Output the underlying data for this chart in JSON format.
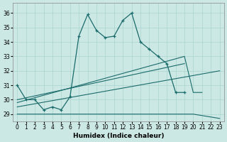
{
  "xlabel": "Humidex (Indice chaleur)",
  "bg_color": "#cce8e4",
  "grid_color": "#aad4d0",
  "line_color": "#1a6b6b",
  "xlim": [
    -0.5,
    23.5
  ],
  "ylim": [
    28.5,
    36.7
  ],
  "yticks": [
    29,
    30,
    31,
    32,
    33,
    34,
    35,
    36
  ],
  "xticks": [
    0,
    1,
    2,
    3,
    4,
    5,
    6,
    7,
    8,
    9,
    10,
    11,
    12,
    13,
    14,
    15,
    16,
    17,
    18,
    19,
    20,
    21,
    22,
    23
  ],
  "line1_x": [
    0,
    1,
    2,
    3,
    4,
    5,
    6,
    7,
    8,
    9,
    10,
    11,
    12,
    13,
    14,
    15,
    16,
    17,
    18,
    19,
    20,
    21
  ],
  "line1_y": [
    31.0,
    30.0,
    30.0,
    29.3,
    29.5,
    29.3,
    30.2,
    34.4,
    35.9,
    34.8,
    34.3,
    34.4,
    35.5,
    36.0,
    34.0,
    33.5,
    33.0,
    32.5,
    30.5,
    30.5,
    null,
    null
  ],
  "line1_has_markers": true,
  "line2_x": [
    0,
    10,
    20,
    23
  ],
  "line2_y": [
    29.0,
    29.0,
    29.0,
    28.7
  ],
  "line3_x": [
    0,
    23
  ],
  "line3_y": [
    29.5,
    32.0
  ],
  "line4_x": [
    0,
    19,
    20,
    21
  ],
  "line4_y": [
    29.8,
    33.0,
    30.5,
    30.5
  ],
  "line5_x": [
    0,
    19
  ],
  "line5_y": [
    30.0,
    32.5
  ]
}
